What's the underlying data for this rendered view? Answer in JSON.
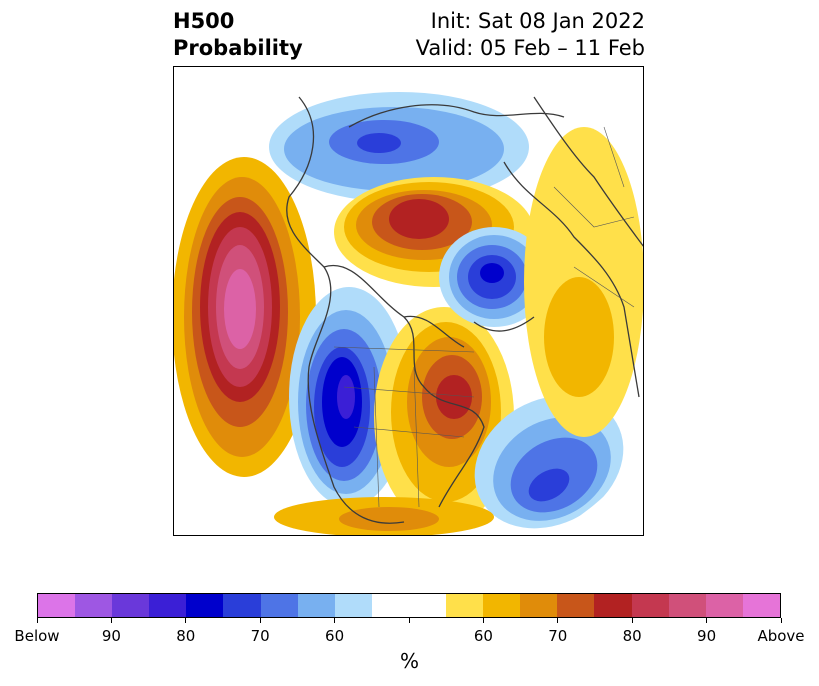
{
  "title": {
    "left_lines": [
      "H500",
      "Probability"
    ],
    "right_lines": [
      "Init: Sat 08 Jan 2022",
      "Valid: 05 Feb – 11 Feb"
    ]
  },
  "map": {
    "projection": "north-polar-stereographic",
    "variable": "500 hPa height anomaly probability"
  },
  "colorbar": {
    "unit": "%",
    "colors": [
      "#dc74e8",
      "#9e57e3",
      "#6a38da",
      "#3b1fd6",
      "#0000cc",
      "#2a3ed9",
      "#4e74e6",
      "#78b0f0",
      "#b0dcfa",
      "#ffffff",
      "#ffffff",
      "#ffe04a",
      "#f2b600",
      "#e08c0a",
      "#c8561a",
      "#b22222",
      "#c43850",
      "#d0507a",
      "#dc62a6",
      "#e674d8"
    ],
    "tick_labels": [
      "Below",
      "90",
      "80",
      "70",
      "60",
      "",
      "60",
      "70",
      "80",
      "90",
      "Above"
    ]
  }
}
